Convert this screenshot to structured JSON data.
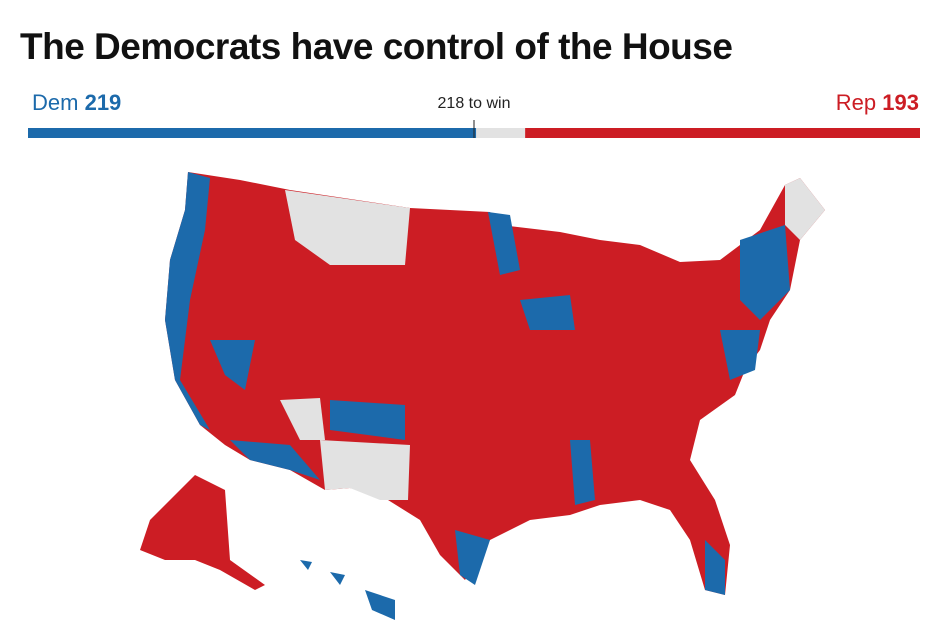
{
  "header": {
    "title": "The Democrats have control of the House"
  },
  "seats": {
    "dem": {
      "label": "Dem",
      "value": 219,
      "color": "#1c6aab"
    },
    "majority": {
      "value": 218,
      "label": "218 to win"
    },
    "rep": {
      "label": "Rep",
      "value": 193,
      "color": "#cc1d24"
    }
  }
}
